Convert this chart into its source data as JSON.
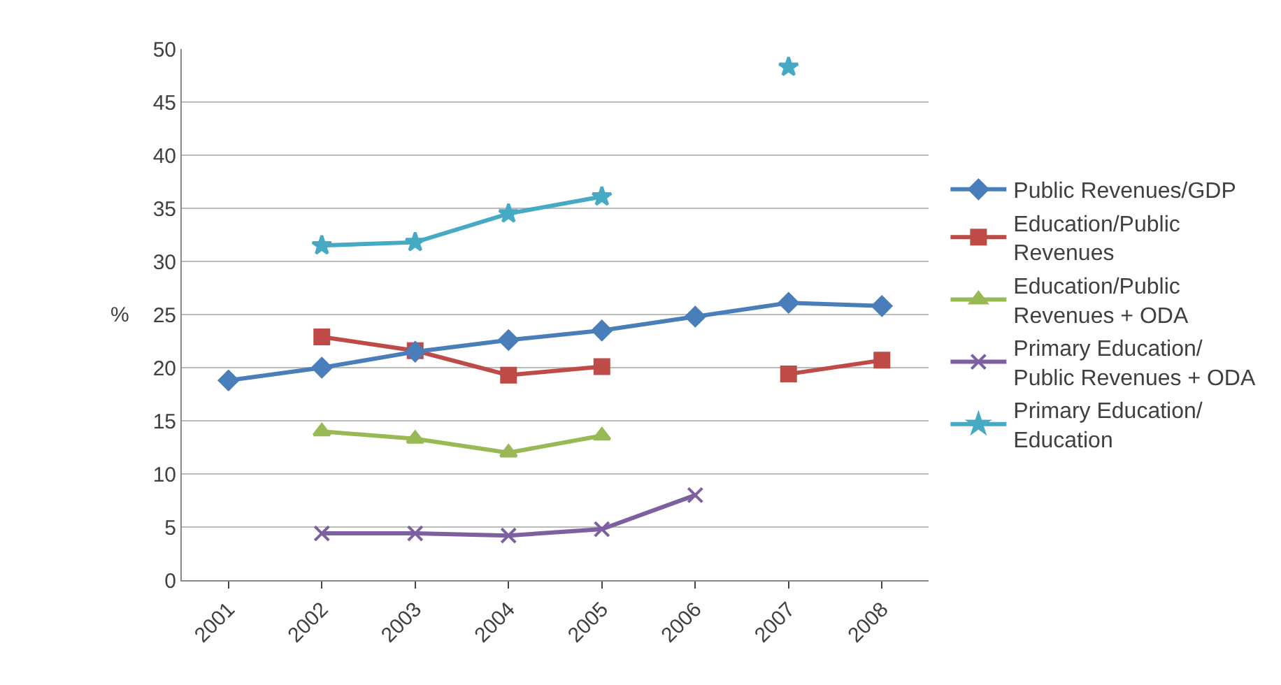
{
  "chart_data": {
    "type": "line",
    "ylabel": "%",
    "categories": [
      "2001",
      "2002",
      "2003",
      "2004",
      "2005",
      "2006",
      "2007",
      "2008"
    ],
    "ylim": [
      0,
      50
    ],
    "yticks": [
      0,
      5,
      10,
      15,
      20,
      25,
      30,
      35,
      40,
      45,
      50
    ],
    "grid": "y",
    "legend": "right",
    "line_style": "solid",
    "series": [
      {
        "name": "Public Revenues/GDP",
        "color": "#4a7ebb",
        "marker": "diamond",
        "values": [
          18.8,
          20.0,
          21.5,
          22.6,
          23.5,
          24.8,
          26.1,
          25.8
        ]
      },
      {
        "name": "Education/Public Revenues",
        "color": "#be4b48",
        "marker": "square",
        "values": [
          null,
          22.9,
          21.6,
          19.3,
          20.1,
          null,
          19.4,
          20.7
        ]
      },
      {
        "name": "Education/Public Revenues + ODA",
        "color": "#98b954",
        "marker": "triangle",
        "values": [
          null,
          14.0,
          13.3,
          12.0,
          13.6,
          null,
          null,
          null
        ]
      },
      {
        "name": "Primary Education/Public Revenues + ODA",
        "color": "#7d60a0",
        "marker": "cross",
        "values": [
          null,
          4.4,
          4.4,
          4.2,
          4.8,
          8.0,
          null,
          null
        ]
      },
      {
        "name": "Primary Education/Education",
        "color": "#46aac5",
        "marker": "star",
        "values": [
          null,
          31.5,
          31.8,
          34.5,
          36.1,
          null,
          48.3,
          null
        ]
      }
    ]
  }
}
